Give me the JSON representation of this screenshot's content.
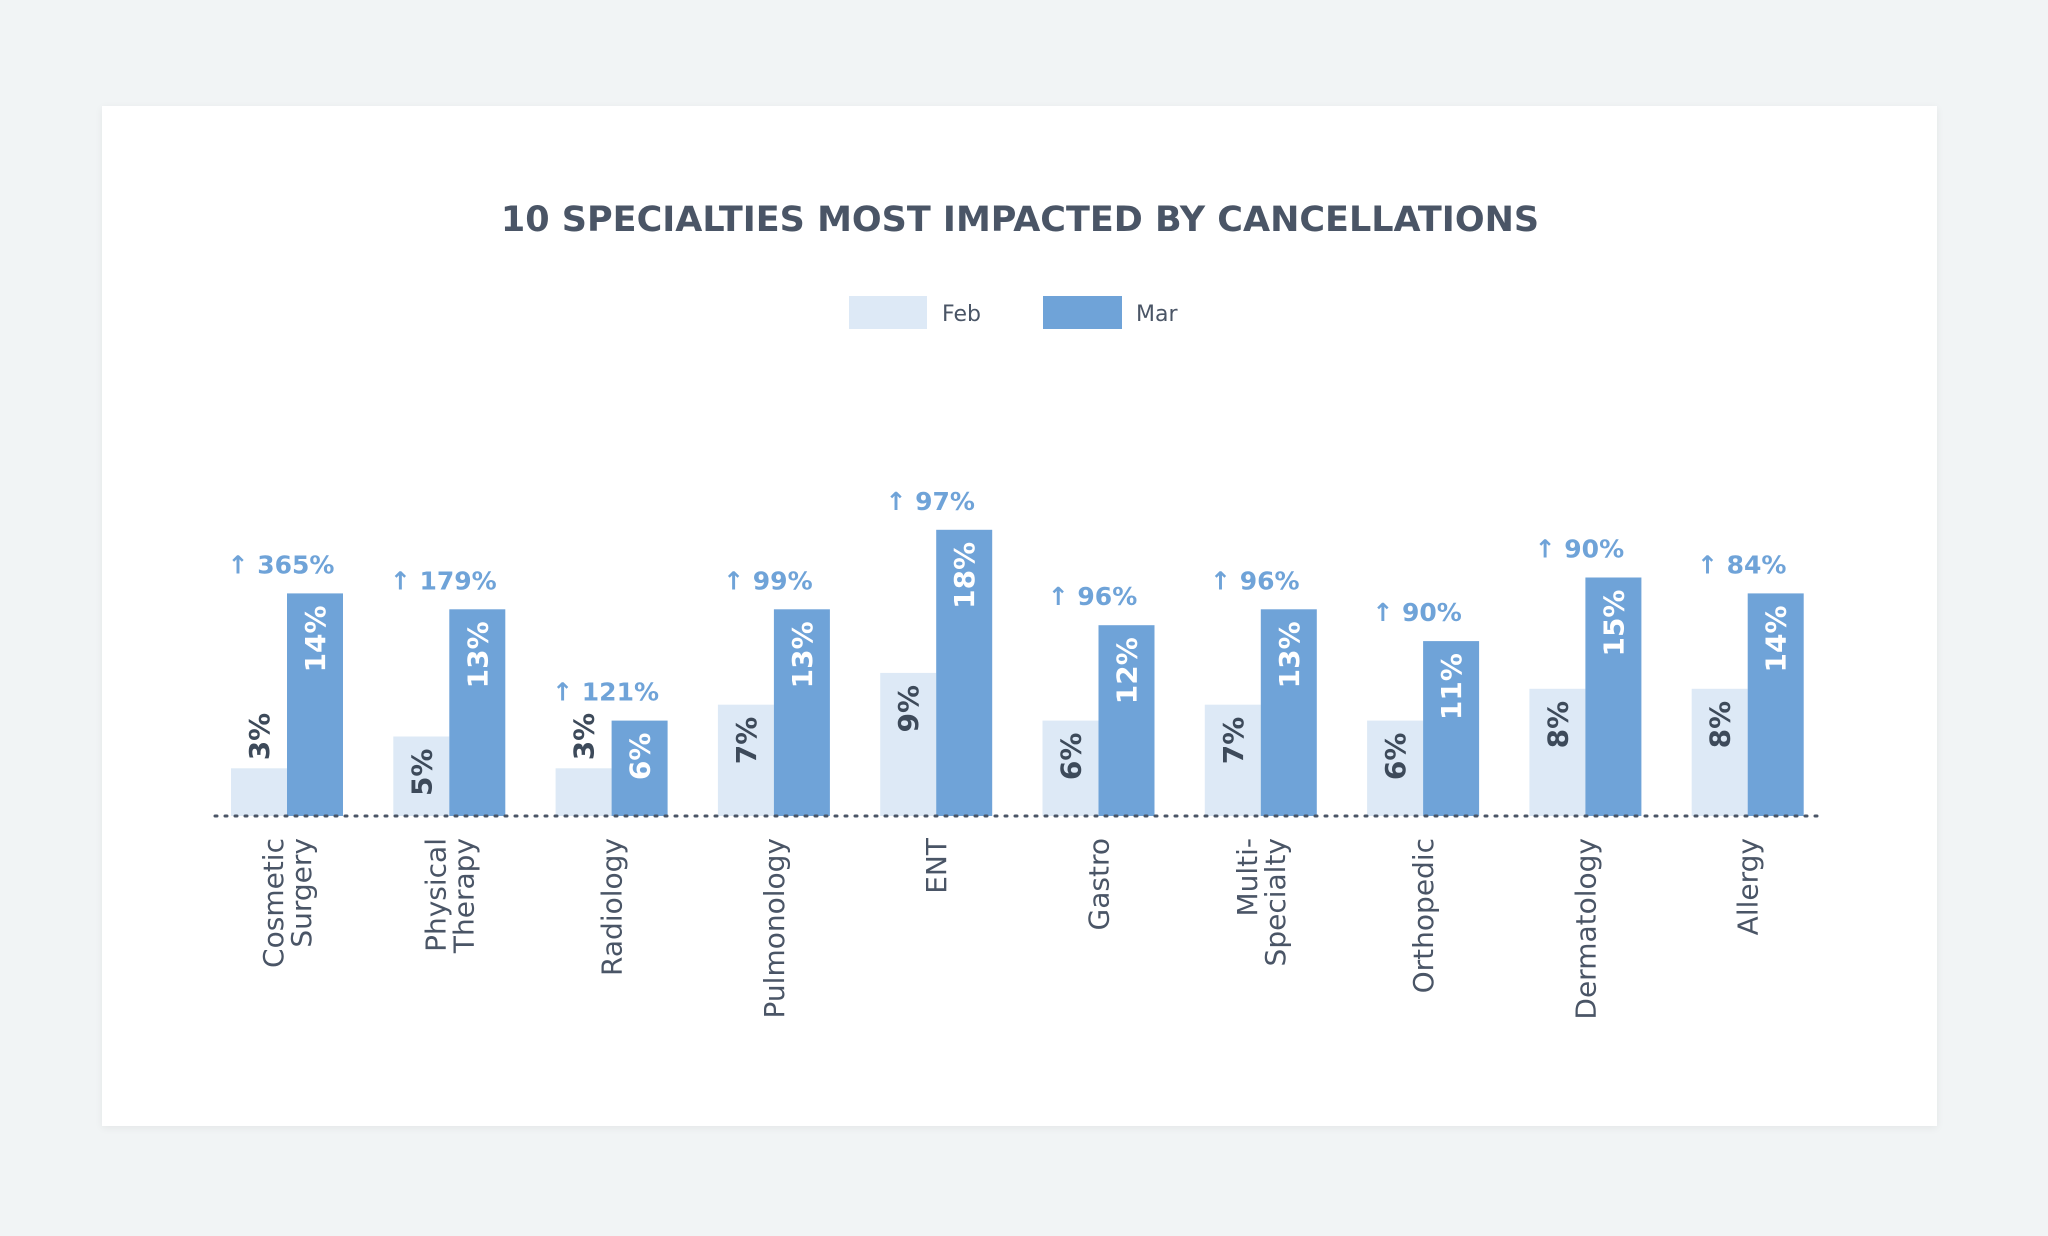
{
  "chart_data": {
    "type": "bar",
    "title": "10 SPECIALTIES MOST IMPACTED BY CANCELLATIONS",
    "legend_position": "top",
    "grid": false,
    "categories": [
      [
        "Cosmetic",
        "Surgery"
      ],
      [
        "Physical",
        "Therapy"
      ],
      [
        "Radiology"
      ],
      [
        "Pulmonology"
      ],
      [
        "ENT"
      ],
      [
        "Gastro"
      ],
      [
        "Multi-",
        "Specialty"
      ],
      [
        "Orthopedic"
      ],
      [
        "Dermatology"
      ],
      [
        "Allergy"
      ]
    ],
    "series": [
      {
        "name": "Feb",
        "color": "#dde9f6",
        "values": [
          3,
          5,
          3,
          7,
          9,
          6,
          7,
          6,
          8,
          8
        ]
      },
      {
        "name": "Mar",
        "color": "#6fa3d8",
        "values": [
          14,
          13,
          6,
          13,
          18,
          12,
          13,
          11,
          15,
          14
        ]
      }
    ],
    "value_labels": {
      "Feb": [
        "3%",
        "5%",
        "3%",
        "7%",
        "9%",
        "6%",
        "7%",
        "6%",
        "8%",
        "8%"
      ],
      "Mar": [
        "14%",
        "13%",
        "6%",
        "13%",
        "18%",
        "12%",
        "13%",
        "11%",
        "15%",
        "14%"
      ]
    },
    "change_labels": [
      "↑ 365%",
      "↑ 179%",
      "↑ 121%",
      "↑ 99%",
      "↑ 97%",
      "↑ 96%",
      "↑ 96%",
      "↑ 90%",
      "↑ 90%",
      "↑ 84%"
    ],
    "ylim": [
      0,
      20
    ],
    "xlabel": "",
    "ylabel": ""
  }
}
